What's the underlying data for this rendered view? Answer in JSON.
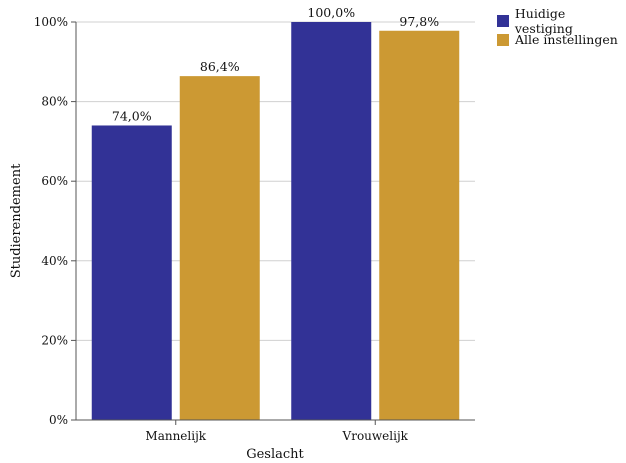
{
  "chart_data": {
    "type": "bar",
    "categories": [
      "Mannelijk",
      "Vrouwelijk"
    ],
    "series": [
      {
        "name": "Huidige vestiging",
        "values": [
          74.0,
          100.0
        ],
        "labels": [
          "74,0%",
          "100,0%"
        ],
        "color": "#323296"
      },
      {
        "name": "Alle instellingen",
        "values": [
          86.4,
          97.8
        ],
        "labels": [
          "86,4%",
          "97,8%"
        ],
        "color": "#CC9933"
      }
    ],
    "title": "",
    "xlabel": "Geslacht",
    "ylabel": "Studierendement",
    "ylim": [
      0,
      100
    ],
    "yticks": [
      0,
      20,
      40,
      60,
      80,
      100
    ],
    "ytick_labels": [
      "0%",
      "20%",
      "40%",
      "60%",
      "80%",
      "100%"
    ],
    "grid": true,
    "legend_position": "top-right"
  }
}
